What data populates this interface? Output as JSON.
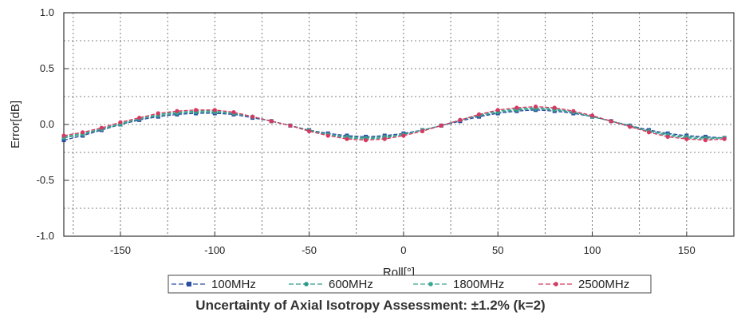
{
  "chart_data": {
    "type": "line",
    "xlabel": "Roll[°]",
    "ylabel": "Error[dB]",
    "xlim": [
      -180,
      175
    ],
    "ylim": [
      -1.0,
      1.0
    ],
    "x_ticks": [
      -150,
      -100,
      -50,
      0,
      50,
      100,
      150
    ],
    "y_ticks": [
      1.0,
      0.5,
      0.0,
      -0.5,
      -1.0
    ],
    "y_tick_labels": [
      "1.0",
      "0.5",
      "0.0",
      "-0.5",
      "-1.0"
    ],
    "grid": true,
    "legend_placement": "bottom",
    "x": [
      -180,
      -170,
      -160,
      -150,
      -140,
      -130,
      -120,
      -110,
      -100,
      -90,
      -80,
      -70,
      -60,
      -50,
      -40,
      -30,
      -20,
      -10,
      0,
      10,
      20,
      30,
      40,
      50,
      60,
      70,
      80,
      90,
      100,
      110,
      120,
      130,
      140,
      150,
      160,
      170
    ],
    "series": [
      {
        "name": "100MHz",
        "color": "#2a4ea0",
        "marker": "square",
        "values": [
          -0.14,
          -0.1,
          -0.05,
          0.0,
          0.04,
          0.07,
          0.09,
          0.1,
          0.1,
          0.09,
          0.06,
          0.03,
          -0.01,
          -0.05,
          -0.08,
          -0.1,
          -0.11,
          -0.1,
          -0.08,
          -0.05,
          -0.01,
          0.03,
          0.07,
          0.1,
          0.12,
          0.13,
          0.12,
          0.1,
          0.07,
          0.03,
          -0.01,
          -0.05,
          -0.08,
          -0.1,
          -0.11,
          -0.12
        ]
      },
      {
        "name": "600MHz",
        "color": "#2e9a8c",
        "marker": "dot",
        "values": [
          -0.12,
          -0.09,
          -0.04,
          0.0,
          0.05,
          0.08,
          0.1,
          0.11,
          0.11,
          0.1,
          0.07,
          0.03,
          -0.01,
          -0.05,
          -0.09,
          -0.11,
          -0.12,
          -0.11,
          -0.09,
          -0.05,
          -0.01,
          0.04,
          0.08,
          0.11,
          0.13,
          0.14,
          0.13,
          0.11,
          0.07,
          0.03,
          -0.01,
          -0.06,
          -0.09,
          -0.11,
          -0.12,
          -0.12
        ]
      },
      {
        "name": "1800MHz",
        "color": "#3aa890",
        "marker": "dot",
        "values": [
          -0.11,
          -0.08,
          -0.04,
          0.01,
          0.05,
          0.09,
          0.11,
          0.12,
          0.12,
          0.1,
          0.07,
          0.03,
          -0.01,
          -0.06,
          -0.09,
          -0.12,
          -0.13,
          -0.12,
          -0.09,
          -0.05,
          -0.01,
          0.04,
          0.09,
          0.12,
          0.14,
          0.15,
          0.14,
          0.11,
          0.07,
          0.03,
          -0.02,
          -0.06,
          -0.1,
          -0.12,
          -0.13,
          -0.12
        ]
      },
      {
        "name": "2500MHz",
        "color": "#d63a62",
        "marker": "dot",
        "values": [
          -0.1,
          -0.07,
          -0.03,
          0.02,
          0.06,
          0.1,
          0.12,
          0.13,
          0.13,
          0.11,
          0.07,
          0.03,
          -0.01,
          -0.06,
          -0.1,
          -0.13,
          -0.14,
          -0.13,
          -0.1,
          -0.06,
          -0.01,
          0.04,
          0.09,
          0.13,
          0.15,
          0.16,
          0.15,
          0.12,
          0.08,
          0.03,
          -0.02,
          -0.07,
          -0.11,
          -0.13,
          -0.14,
          -0.13
        ]
      }
    ]
  },
  "caption": "Uncertainty of Axial Isotropy Assessment: ±1.2% (k=2)"
}
